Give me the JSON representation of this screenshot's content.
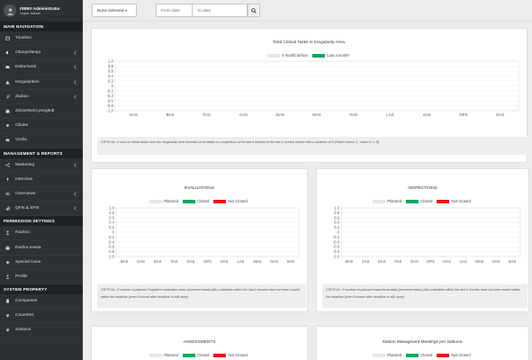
{
  "sidebar": {
    "profile": {
      "name": "ISBIKI Administrator",
      "role": "Super Admin"
    },
    "sections": [
      {
        "title": "MAIN NAVIGATION",
        "items": [
          {
            "label": "Timeline",
            "icon": "calendar-icon",
            "expandable": false
          },
          {
            "label": "Obavještenja",
            "icon": "bullhorn-icon",
            "expandable": true
          },
          {
            "label": "Dokumenti",
            "icon": "folder-icon",
            "expandable": true
          },
          {
            "label": "Irregularities",
            "icon": "warning-icon",
            "expandable": true
          },
          {
            "label": "Zadaci",
            "icon": "wrench-icon",
            "expandable": true
          },
          {
            "label": "Zdravstveni pregledi",
            "icon": "medkit-icon",
            "expandable": false
          },
          {
            "label": "Obuke",
            "icon": "graduation-cap-icon",
            "expandable": false
          },
          {
            "label": "Vozila",
            "icon": "car-icon",
            "expandable": false
          }
        ]
      },
      {
        "title": "MANAGEMENT & REPORTS",
        "items": [
          {
            "label": "Marketing",
            "icon": "share-icon",
            "expandable": true
          },
          {
            "label": "Interview",
            "icon": "microphone-icon",
            "expandable": false
          },
          {
            "label": "Overviews",
            "icon": "eye-icon",
            "expandable": true
          },
          {
            "label": "QFIs & SPIs",
            "icon": "chart-icon",
            "expandable": true
          }
        ]
      },
      {
        "title": "PERMISSION SETTINGS",
        "items": [
          {
            "label": "Radnici",
            "icon": "user-icon",
            "expandable": false
          },
          {
            "label": "Radna mesta",
            "icon": "briefcase-icon",
            "expandable": false
          },
          {
            "label": "Special Case",
            "icon": "star-icon",
            "expandable": false
          },
          {
            "label": "Profile",
            "icon": "user-profile-icon",
            "expandable": false
          }
        ]
      },
      {
        "title": "SYSTEM PROPERTY",
        "items": [
          {
            "label": "Companies",
            "icon": "building-icon",
            "expandable": false
          },
          {
            "label": "Countries",
            "icon": "map-marker-icon",
            "expandable": false
          },
          {
            "label": "Stations",
            "icon": "location-icon",
            "expandable": false
          }
        ]
      }
    ]
  },
  "filters": {
    "department_select": "None selected",
    "from_placeholder": "From date",
    "to_placeholder": "To date",
    "search_icon": "search-icon"
  },
  "colors": {
    "sidebar_bg": "#2b3135",
    "section_bg": "#1d2225",
    "planned": "#e6e6e6",
    "closed": "#13a65e",
    "not_closed": "#e8141a",
    "last_period": "#13a65e",
    "before_period": "#e6e6e6"
  },
  "panels": {
    "critical": {
      "note": "CRITICAL: If sum of critical tasks from the irregularity area increase or be stable in comparison of the last 4 months to the last 4 months before with a variance of 5 (Failed: below 0 - value 0 <= 5)"
    },
    "evaluations": {
      "note": "CRITICAL: If number of planned Supplier's evaluation tasks (recurrent tasks) with a deadline within the last 4 months have not been closed within the deadline (even if closed after deadline or still open)"
    },
    "inspections": {
      "note": "CRITICAL: If number of planned Inspections tasks (recurrent tasks) with a deadline within the last 4 months have not been closed within the deadline (even if closed after deadline or still open)"
    }
  },
  "chart_data": [
    {
      "type": "bar",
      "title": "Total Critical Tasks in Irregularity Area.",
      "categories": [
        "GAS",
        "BAS",
        "FAS",
        "CAS",
        "DAS",
        "MAS",
        "HAS",
        "LAS",
        "SAS",
        "GPS",
        "OAS"
      ],
      "series": [
        {
          "name": "4 month before",
          "color": "#e6e6e6",
          "values": [
            0,
            0,
            0,
            0,
            0,
            0,
            0,
            0,
            0,
            0,
            0
          ]
        },
        {
          "name": "Last 4 month",
          "color": "#13a65e",
          "values": [
            0,
            0,
            0,
            0,
            0,
            0,
            0,
            0,
            0,
            0,
            0
          ]
        }
      ],
      "yticks": [
        "1.0",
        "0.8",
        "0.6",
        "0.4",
        "0.2",
        "0",
        "-0.2",
        "-0.4",
        "-0.6",
        "-0.8",
        "-1.0"
      ],
      "ylim": [
        -1,
        1
      ]
    },
    {
      "type": "bar",
      "title": "EVALUATIONS",
      "categories": [
        "BAS",
        "CAS",
        "DAS",
        "FAS",
        "GAS",
        "GPS",
        "HAS",
        "LAS",
        "MAS",
        "OAS",
        "SAS"
      ],
      "series": [
        {
          "name": "Planned",
          "color": "#e6e6e6",
          "values": [
            0,
            0,
            0,
            0,
            0,
            0,
            0,
            0,
            0,
            0,
            0
          ]
        },
        {
          "name": "Closed",
          "color": "#13a65e",
          "values": [
            0,
            0,
            0,
            0,
            0,
            0,
            0,
            0,
            0,
            0,
            0
          ]
        },
        {
          "name": "Not Closed",
          "color": "#e8141a",
          "values": [
            0,
            0,
            0,
            0,
            0,
            0,
            0,
            0,
            0,
            0,
            0
          ]
        }
      ],
      "yticks": [
        "1.0",
        "0.8",
        "0.6",
        "0.4",
        "0.2",
        "0",
        "-0.2",
        "-0.4",
        "-0.6",
        "-0.8",
        "-1.0"
      ],
      "ylim": [
        -1,
        1
      ]
    },
    {
      "type": "bar",
      "title": "INSPECTIONS",
      "categories": [
        "BAS",
        "CAS",
        "DAS",
        "FAS",
        "GAS",
        "GPS",
        "HAS",
        "LAS",
        "MAS",
        "OAS",
        "SAS"
      ],
      "series": [
        {
          "name": "Planned",
          "color": "#e6e6e6",
          "values": [
            0,
            0,
            0,
            0,
            0,
            0,
            0,
            0,
            0,
            0,
            0
          ]
        },
        {
          "name": "Closed",
          "color": "#13a65e",
          "values": [
            0,
            0,
            0,
            0,
            0,
            0,
            0,
            0,
            0,
            0,
            0
          ]
        },
        {
          "name": "Not Closed",
          "color": "#e8141a",
          "values": [
            0,
            0,
            0,
            0,
            0,
            0,
            0,
            0,
            0,
            0,
            0
          ]
        }
      ],
      "yticks": [
        "1.0",
        "0.8",
        "0.6",
        "0.4",
        "0.2",
        "0",
        "-0.2",
        "-0.4",
        "-0.6",
        "-0.8",
        "-1.0"
      ],
      "ylim": [
        -1,
        1
      ]
    },
    {
      "type": "bar",
      "title": "ASSESSMENTS",
      "categories": [],
      "series": [
        {
          "name": "Planned",
          "color": "#e6e6e6",
          "values": []
        },
        {
          "name": "Closed",
          "color": "#13a65e",
          "values": []
        },
        {
          "name": "Not Closed",
          "color": "#e8141a",
          "values": []
        }
      ],
      "yticks": [],
      "ylim": [
        -1,
        1
      ]
    },
    {
      "type": "bar",
      "title": "Station Managment Meetings per stations.",
      "categories": [],
      "series": [
        {
          "name": "Planned",
          "color": "#e6e6e6",
          "values": []
        },
        {
          "name": "Closed",
          "color": "#13a65e",
          "values": []
        },
        {
          "name": "Not Closed",
          "color": "#e8141a",
          "values": []
        }
      ],
      "yticks": [],
      "ylim": [
        -1,
        1
      ]
    }
  ]
}
